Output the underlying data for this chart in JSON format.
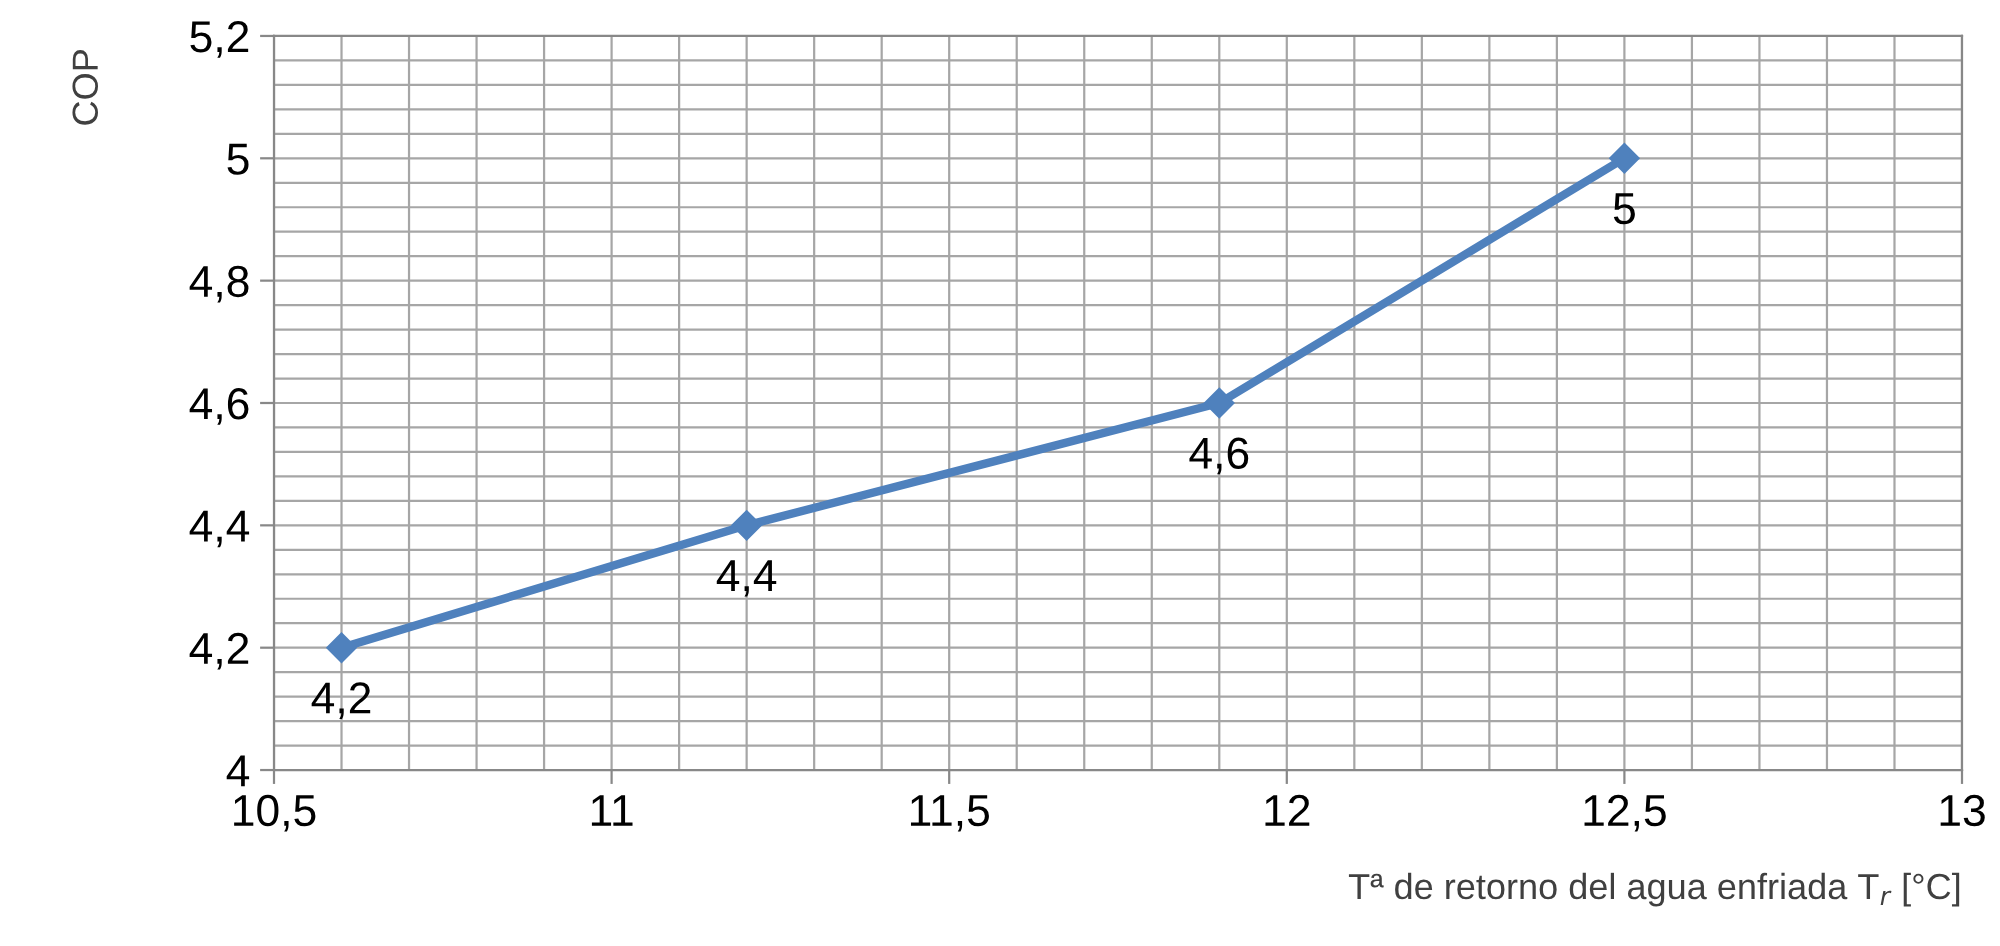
{
  "chart_data": {
    "type": "line",
    "xlabel": "Tª de retorno del agua enfriada T$_{r}$ [°C]",
    "ylabel": "COP",
    "x": [
      10.6,
      11.2,
      11.9,
      12.5
    ],
    "series": [
      {
        "color": "#4f81bd",
        "values": [
          4.2,
          4.4,
          4.6,
          5
        ]
      }
    ],
    "xlim": [
      10.5,
      13
    ],
    "ylim": [
      4,
      5.2
    ],
    "xticks": [
      {
        "value": 10.5,
        "label": "10,5"
      },
      11,
      {
        "value": 11.5,
        "label": "11,5"
      },
      12,
      {
        "value": 12.5,
        "label": "12,5"
      },
      13
    ],
    "yticks": [
      4,
      {
        "value": 4.2,
        "label": "4,2"
      },
      {
        "value": 4.4,
        "label": "4,4"
      },
      {
        "value": 4.6,
        "label": "4,6"
      },
      {
        "value": 4.8,
        "label": "4,8"
      },
      5,
      {
        "value": 5.2,
        "label": "5,2"
      }
    ],
    "value_labels": [
      "4,2",
      "4,4",
      "4,6",
      "5"
    ],
    "grid": true,
    "marker": "diamond",
    "line_style": "solid",
    "legend": false
  }
}
